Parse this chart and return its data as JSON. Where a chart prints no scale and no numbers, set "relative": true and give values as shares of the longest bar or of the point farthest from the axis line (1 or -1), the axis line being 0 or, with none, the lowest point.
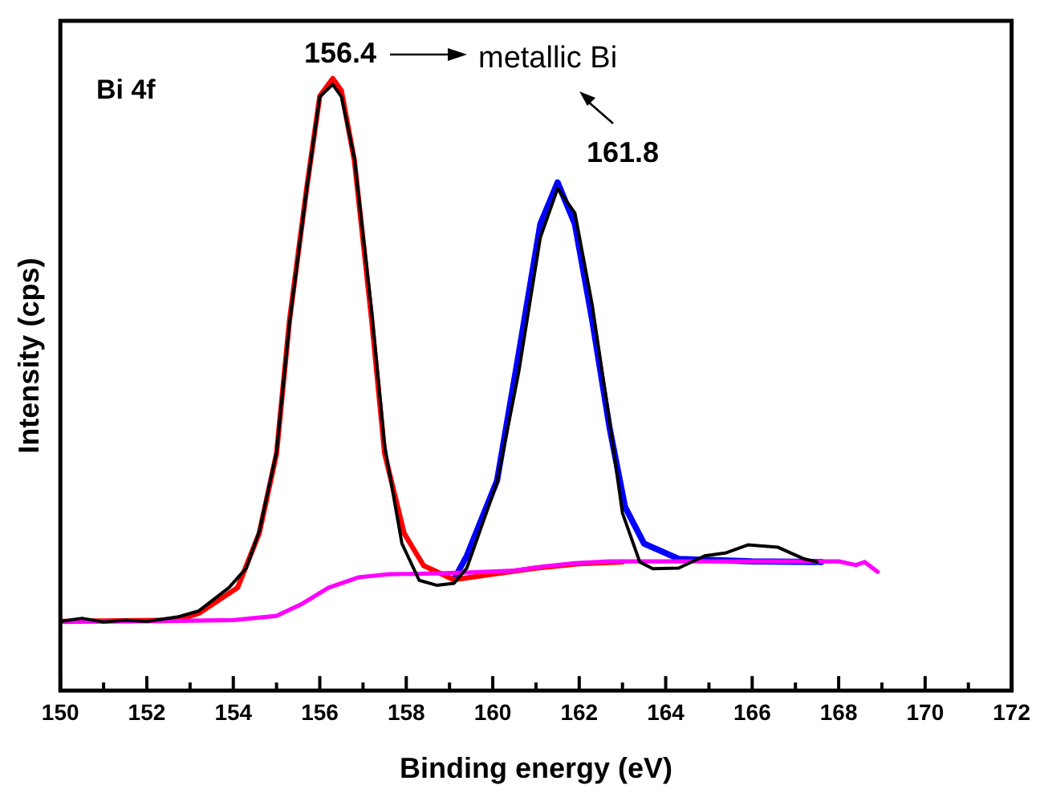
{
  "chart_data": {
    "type": "line",
    "relative": true,
    "xlabel": "Binding energy (eV)",
    "ylabel": "Intensity (cps)",
    "xlim": [
      150,
      172
    ],
    "xticks": [
      150,
      {
        "value": 151,
        "label": null
      },
      152,
      {
        "value": 153,
        "label": null
      },
      154,
      {
        "value": 155,
        "label": null
      },
      156,
      {
        "value": 157,
        "label": null
      },
      158,
      {
        "value": 159,
        "label": null
      },
      160,
      {
        "value": 161,
        "label": null
      },
      162,
      {
        "value": 163,
        "label": null
      },
      164,
      {
        "value": 165,
        "label": null
      },
      166,
      {
        "value": 167,
        "label": null
      },
      168,
      {
        "value": 169,
        "label": null
      },
      170,
      {
        "value": 171,
        "label": null
      },
      172
    ],
    "grid": false,
    "legend": false,
    "marker": "none",
    "line_style": "solid",
    "series": [
      {
        "color": "#000000",
        "x": [
          150,
          150.5,
          151,
          151.5,
          152,
          152.7,
          153.2,
          153.9,
          154.3,
          154.6,
          155.0,
          155.3,
          155.7,
          156.0,
          156.3,
          156.5,
          156.8,
          157.2,
          157.5,
          157.9,
          158.3,
          158.7,
          159.1,
          159.4,
          160.1,
          160.6,
          161.1,
          161.5,
          161.9,
          162.3,
          162.7,
          163.0,
          163.4,
          163.7,
          164.3,
          164.9,
          165.4,
          165.9,
          166.6,
          167.2,
          167.5
        ],
        "values": [
          0.113,
          0.118,
          0.112,
          0.115,
          0.113,
          0.12,
          0.13,
          0.168,
          0.2,
          0.26,
          0.39,
          0.6,
          0.82,
          0.97,
          0.99,
          0.97,
          0.87,
          0.62,
          0.4,
          0.24,
          0.18,
          0.172,
          0.175,
          0.2,
          0.34,
          0.52,
          0.74,
          0.82,
          0.78,
          0.63,
          0.44,
          0.29,
          0.21,
          0.199,
          0.2,
          0.22,
          0.225,
          0.238,
          0.234,
          0.215,
          0.21
        ]
      },
      {
        "color": "#ff00ff",
        "x": [
          150,
          152,
          154,
          155,
          155.6,
          156.2,
          156.9,
          157.6,
          158.5,
          159.5,
          160.5,
          161.2,
          161.9,
          162.7,
          164,
          166,
          168,
          168.4,
          168.6,
          168.9
        ],
        "values": [
          0.113,
          0.113,
          0.115,
          0.122,
          0.142,
          0.168,
          0.185,
          0.19,
          0.191,
          0.193,
          0.196,
          0.203,
          0.208,
          0.211,
          0.211,
          0.211,
          0.211,
          0.205,
          0.21,
          0.194
        ]
      },
      {
        "color": "#ff0000",
        "x": [
          150,
          152.7,
          153.2,
          154.1,
          154.6,
          155.0,
          155.3,
          155.7,
          156.0,
          156.3,
          156.5,
          156.8,
          157.2,
          157.5,
          157.95,
          158.4,
          159.1,
          160.0,
          161.0,
          162.0,
          163.0
        ],
        "values": [
          0.113,
          0.115,
          0.126,
          0.168,
          0.257,
          0.387,
          0.605,
          0.822,
          0.971,
          1.0,
          0.98,
          0.866,
          0.605,
          0.387,
          0.257,
          0.204,
          0.181,
          0.19,
          0.2,
          0.207,
          0.21
        ]
      },
      {
        "color": "#0000ff",
        "x": [
          159.1,
          159.4,
          160.1,
          160.6,
          161.1,
          161.5,
          161.9,
          162.3,
          162.7,
          163.06,
          163.5,
          164.3,
          166,
          167.6
        ],
        "values": [
          0.181,
          0.22,
          0.343,
          0.55,
          0.762,
          0.83,
          0.762,
          0.605,
          0.43,
          0.3,
          0.24,
          0.215,
          0.211,
          0.21
        ]
      }
    ],
    "annotations": [
      "Bi 4f",
      "156.4",
      "metallic Bi",
      "161.8"
    ]
  }
}
